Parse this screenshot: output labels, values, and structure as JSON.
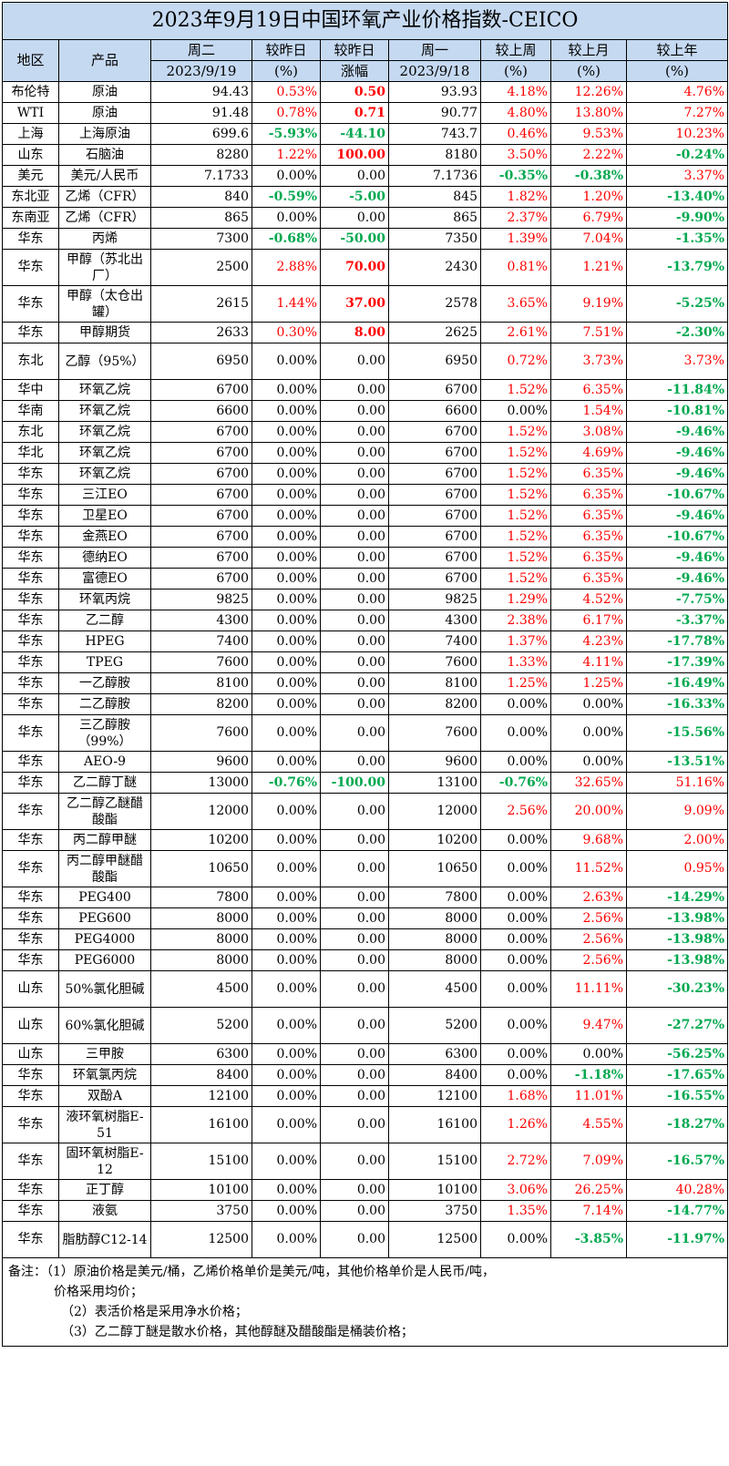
{
  "title": "2023年9月19日中国环氧产业价格指数-CEICO",
  "headers": {
    "region": "地区",
    "product": "产品",
    "tue": "周二",
    "tue_date": "2023/9/19",
    "chg_pct": "较昨日",
    "chg_pct_unit": "(%)",
    "chg_abs": "较昨日",
    "chg_abs_unit": "涨幅",
    "mon": "周一",
    "mon_date": "2023/9/18",
    "wk": "较上周",
    "wk_unit": "(%)",
    "mo": "较上月",
    "mo_unit": "(%)",
    "yr": "较上年",
    "yr_unit": "(%)"
  },
  "rows": [
    [
      "布伦特",
      "原油",
      "94.43",
      "0.53%",
      "0.50",
      "93.93",
      "4.18%",
      "12.26%",
      "4.76%"
    ],
    [
      "WTI",
      "原油",
      "91.48",
      "0.78%",
      "0.71",
      "90.77",
      "4.80%",
      "13.80%",
      "7.27%"
    ],
    [
      "上海",
      "上海原油",
      "699.6",
      "-5.93%",
      "-44.10",
      "743.7",
      "0.46%",
      "9.53%",
      "10.23%"
    ],
    [
      "山东",
      "石脑油",
      "8280",
      "1.22%",
      "100.00",
      "8180",
      "3.50%",
      "2.22%",
      "-0.24%"
    ],
    [
      "美元",
      "美元/人民币",
      "7.1733",
      "0.00%",
      "0.00",
      "7.1736",
      "-0.35%",
      "-0.38%",
      "3.37%"
    ],
    [
      "东北亚",
      "乙烯（CFR）",
      "840",
      "-0.59%",
      "-5.00",
      "845",
      "1.82%",
      "1.20%",
      "-13.40%"
    ],
    [
      "东南亚",
      "乙烯（CFR）",
      "865",
      "0.00%",
      "0.00",
      "865",
      "2.37%",
      "6.79%",
      "-9.90%"
    ],
    [
      "华东",
      "丙烯",
      "7300",
      "-0.68%",
      "-50.00",
      "7350",
      "1.39%",
      "7.04%",
      "-1.35%"
    ],
    [
      "华东",
      "甲醇（苏北出厂）",
      "2500",
      "2.88%",
      "70.00",
      "2430",
      "0.81%",
      "1.21%",
      "-13.79%"
    ],
    [
      "华东",
      "甲醇（太仓出罐）",
      "2615",
      "1.44%",
      "37.00",
      "2578",
      "3.65%",
      "9.19%",
      "-5.25%"
    ],
    [
      "华东",
      "甲醇期货",
      "2633",
      "0.30%",
      "8.00",
      "2625",
      "2.61%",
      "7.51%",
      "-2.30%"
    ],
    [
      "东北",
      "乙醇（95%）",
      "6950",
      "0.00%",
      "0.00",
      "6950",
      "0.72%",
      "3.73%",
      "3.73%"
    ],
    [
      "华中",
      "环氧乙烷",
      "6700",
      "0.00%",
      "0.00",
      "6700",
      "1.52%",
      "6.35%",
      "-11.84%"
    ],
    [
      "华南",
      "环氧乙烷",
      "6600",
      "0.00%",
      "0.00",
      "6600",
      "0.00%",
      "1.54%",
      "-10.81%"
    ],
    [
      "东北",
      "环氧乙烷",
      "6700",
      "0.00%",
      "0.00",
      "6700",
      "1.52%",
      "3.08%",
      "-9.46%"
    ],
    [
      "华北",
      "环氧乙烷",
      "6700",
      "0.00%",
      "0.00",
      "6700",
      "1.52%",
      "4.69%",
      "-9.46%"
    ],
    [
      "华东",
      "环氧乙烷",
      "6700",
      "0.00%",
      "0.00",
      "6700",
      "1.52%",
      "6.35%",
      "-9.46%"
    ],
    [
      "华东",
      "三江EO",
      "6700",
      "0.00%",
      "0.00",
      "6700",
      "1.52%",
      "6.35%",
      "-10.67%"
    ],
    [
      "华东",
      "卫星EO",
      "6700",
      "0.00%",
      "0.00",
      "6700",
      "1.52%",
      "6.35%",
      "-9.46%"
    ],
    [
      "华东",
      "金燕EO",
      "6700",
      "0.00%",
      "0.00",
      "6700",
      "1.52%",
      "6.35%",
      "-10.67%"
    ],
    [
      "华东",
      "德纳EO",
      "6700",
      "0.00%",
      "0.00",
      "6700",
      "1.52%",
      "6.35%",
      "-9.46%"
    ],
    [
      "华东",
      "富德EO",
      "6700",
      "0.00%",
      "0.00",
      "6700",
      "1.52%",
      "6.35%",
      "-9.46%"
    ],
    [
      "华东",
      "环氧丙烷",
      "9825",
      "0.00%",
      "0.00",
      "9825",
      "1.29%",
      "4.52%",
      "-7.75%"
    ],
    [
      "华东",
      "乙二醇",
      "4300",
      "0.00%",
      "0.00",
      "4300",
      "2.38%",
      "6.17%",
      "-3.37%"
    ],
    [
      "华东",
      "HPEG",
      "7400",
      "0.00%",
      "0.00",
      "7400",
      "1.37%",
      "4.23%",
      "-17.78%"
    ],
    [
      "华东",
      "TPEG",
      "7600",
      "0.00%",
      "0.00",
      "7600",
      "1.33%",
      "4.11%",
      "-17.39%"
    ],
    [
      "华东",
      "一乙醇胺",
      "8100",
      "0.00%",
      "0.00",
      "8100",
      "1.25%",
      "1.25%",
      "-16.49%"
    ],
    [
      "华东",
      "二乙醇胺",
      "8200",
      "0.00%",
      "0.00",
      "8200",
      "0.00%",
      "0.00%",
      "-16.33%"
    ],
    [
      "华东",
      "三乙醇胺（99%）",
      "7600",
      "0.00%",
      "0.00",
      "7600",
      "0.00%",
      "0.00%",
      "-15.56%"
    ],
    [
      "华东",
      "AEO-9",
      "9600",
      "0.00%",
      "0.00",
      "9600",
      "0.00%",
      "0.00%",
      "-13.51%"
    ],
    [
      "华东",
      "乙二醇丁醚",
      "13000",
      "-0.76%",
      "-100.00",
      "13100",
      "-0.76%",
      "32.65%",
      "51.16%"
    ],
    [
      "华东",
      "乙二醇乙醚醋酸酯",
      "12000",
      "0.00%",
      "0.00",
      "12000",
      "2.56%",
      "20.00%",
      "9.09%"
    ],
    [
      "华东",
      "丙二醇甲醚",
      "10200",
      "0.00%",
      "0.00",
      "10200",
      "0.00%",
      "9.68%",
      "2.00%"
    ],
    [
      "华东",
      "丙二醇甲醚醋酸酯",
      "10650",
      "0.00%",
      "0.00",
      "10650",
      "0.00%",
      "11.52%",
      "0.95%"
    ],
    [
      "华东",
      "PEG400",
      "7800",
      "0.00%",
      "0.00",
      "7800",
      "0.00%",
      "2.63%",
      "-14.29%"
    ],
    [
      "华东",
      "PEG600",
      "8000",
      "0.00%",
      "0.00",
      "8000",
      "0.00%",
      "2.56%",
      "-13.98%"
    ],
    [
      "华东",
      "PEG4000",
      "8000",
      "0.00%",
      "0.00",
      "8000",
      "0.00%",
      "2.56%",
      "-13.98%"
    ],
    [
      "华东",
      "PEG6000",
      "8000",
      "0.00%",
      "0.00",
      "8000",
      "0.00%",
      "2.56%",
      "-13.98%"
    ],
    [
      "山东",
      "50%氯化胆碱",
      "4500",
      "0.00%",
      "0.00",
      "4500",
      "0.00%",
      "11.11%",
      "-30.23%"
    ],
    [
      "山东",
      "60%氯化胆碱",
      "5200",
      "0.00%",
      "0.00",
      "5200",
      "0.00%",
      "9.47%",
      "-27.27%"
    ],
    [
      "山东",
      "三甲胺",
      "6300",
      "0.00%",
      "0.00",
      "6300",
      "0.00%",
      "0.00%",
      "-56.25%"
    ],
    [
      "华东",
      "环氧氯丙烷",
      "8400",
      "0.00%",
      "0.00",
      "8400",
      "0.00%",
      "-1.18%",
      "-17.65%"
    ],
    [
      "华东",
      "双酚A",
      "12100",
      "0.00%",
      "0.00",
      "12100",
      "1.68%",
      "11.01%",
      "-16.55%"
    ],
    [
      "华东",
      "液环氧树脂E-51",
      "16100",
      "0.00%",
      "0.00",
      "16100",
      "1.26%",
      "4.55%",
      "-18.27%"
    ],
    [
      "华东",
      "固环氧树脂E-12",
      "15100",
      "0.00%",
      "0.00",
      "15100",
      "2.72%",
      "7.09%",
      "-16.57%"
    ],
    [
      "华东",
      "正丁醇",
      "10100",
      "0.00%",
      "0.00",
      "10100",
      "3.06%",
      "26.25%",
      "40.28%"
    ],
    [
      "华东",
      "液氨",
      "3750",
      "0.00%",
      "0.00",
      "3750",
      "1.35%",
      "7.14%",
      "-14.77%"
    ],
    [
      "华东",
      "脂肪醇C12-14",
      "12500",
      "0.00%",
      "0.00",
      "12500",
      "0.00%",
      "-3.85%",
      "-11.97%"
    ]
  ],
  "notes": [
    "备注：（1）原油价格是美元/桶，乙烯价格单价是美元/吨，其他价格单价是人民币/吨，",
    "价格采用均价；",
    "（2）表活价格是采用净水价格；",
    "（3）乙二醇丁醚是散水价格，其他醇醚及醋酸酯是桶装价格；"
  ],
  "colors": {
    "header_bg": "#c5d9f1",
    "positive": "#ff0000",
    "negative": "#00a84f"
  }
}
